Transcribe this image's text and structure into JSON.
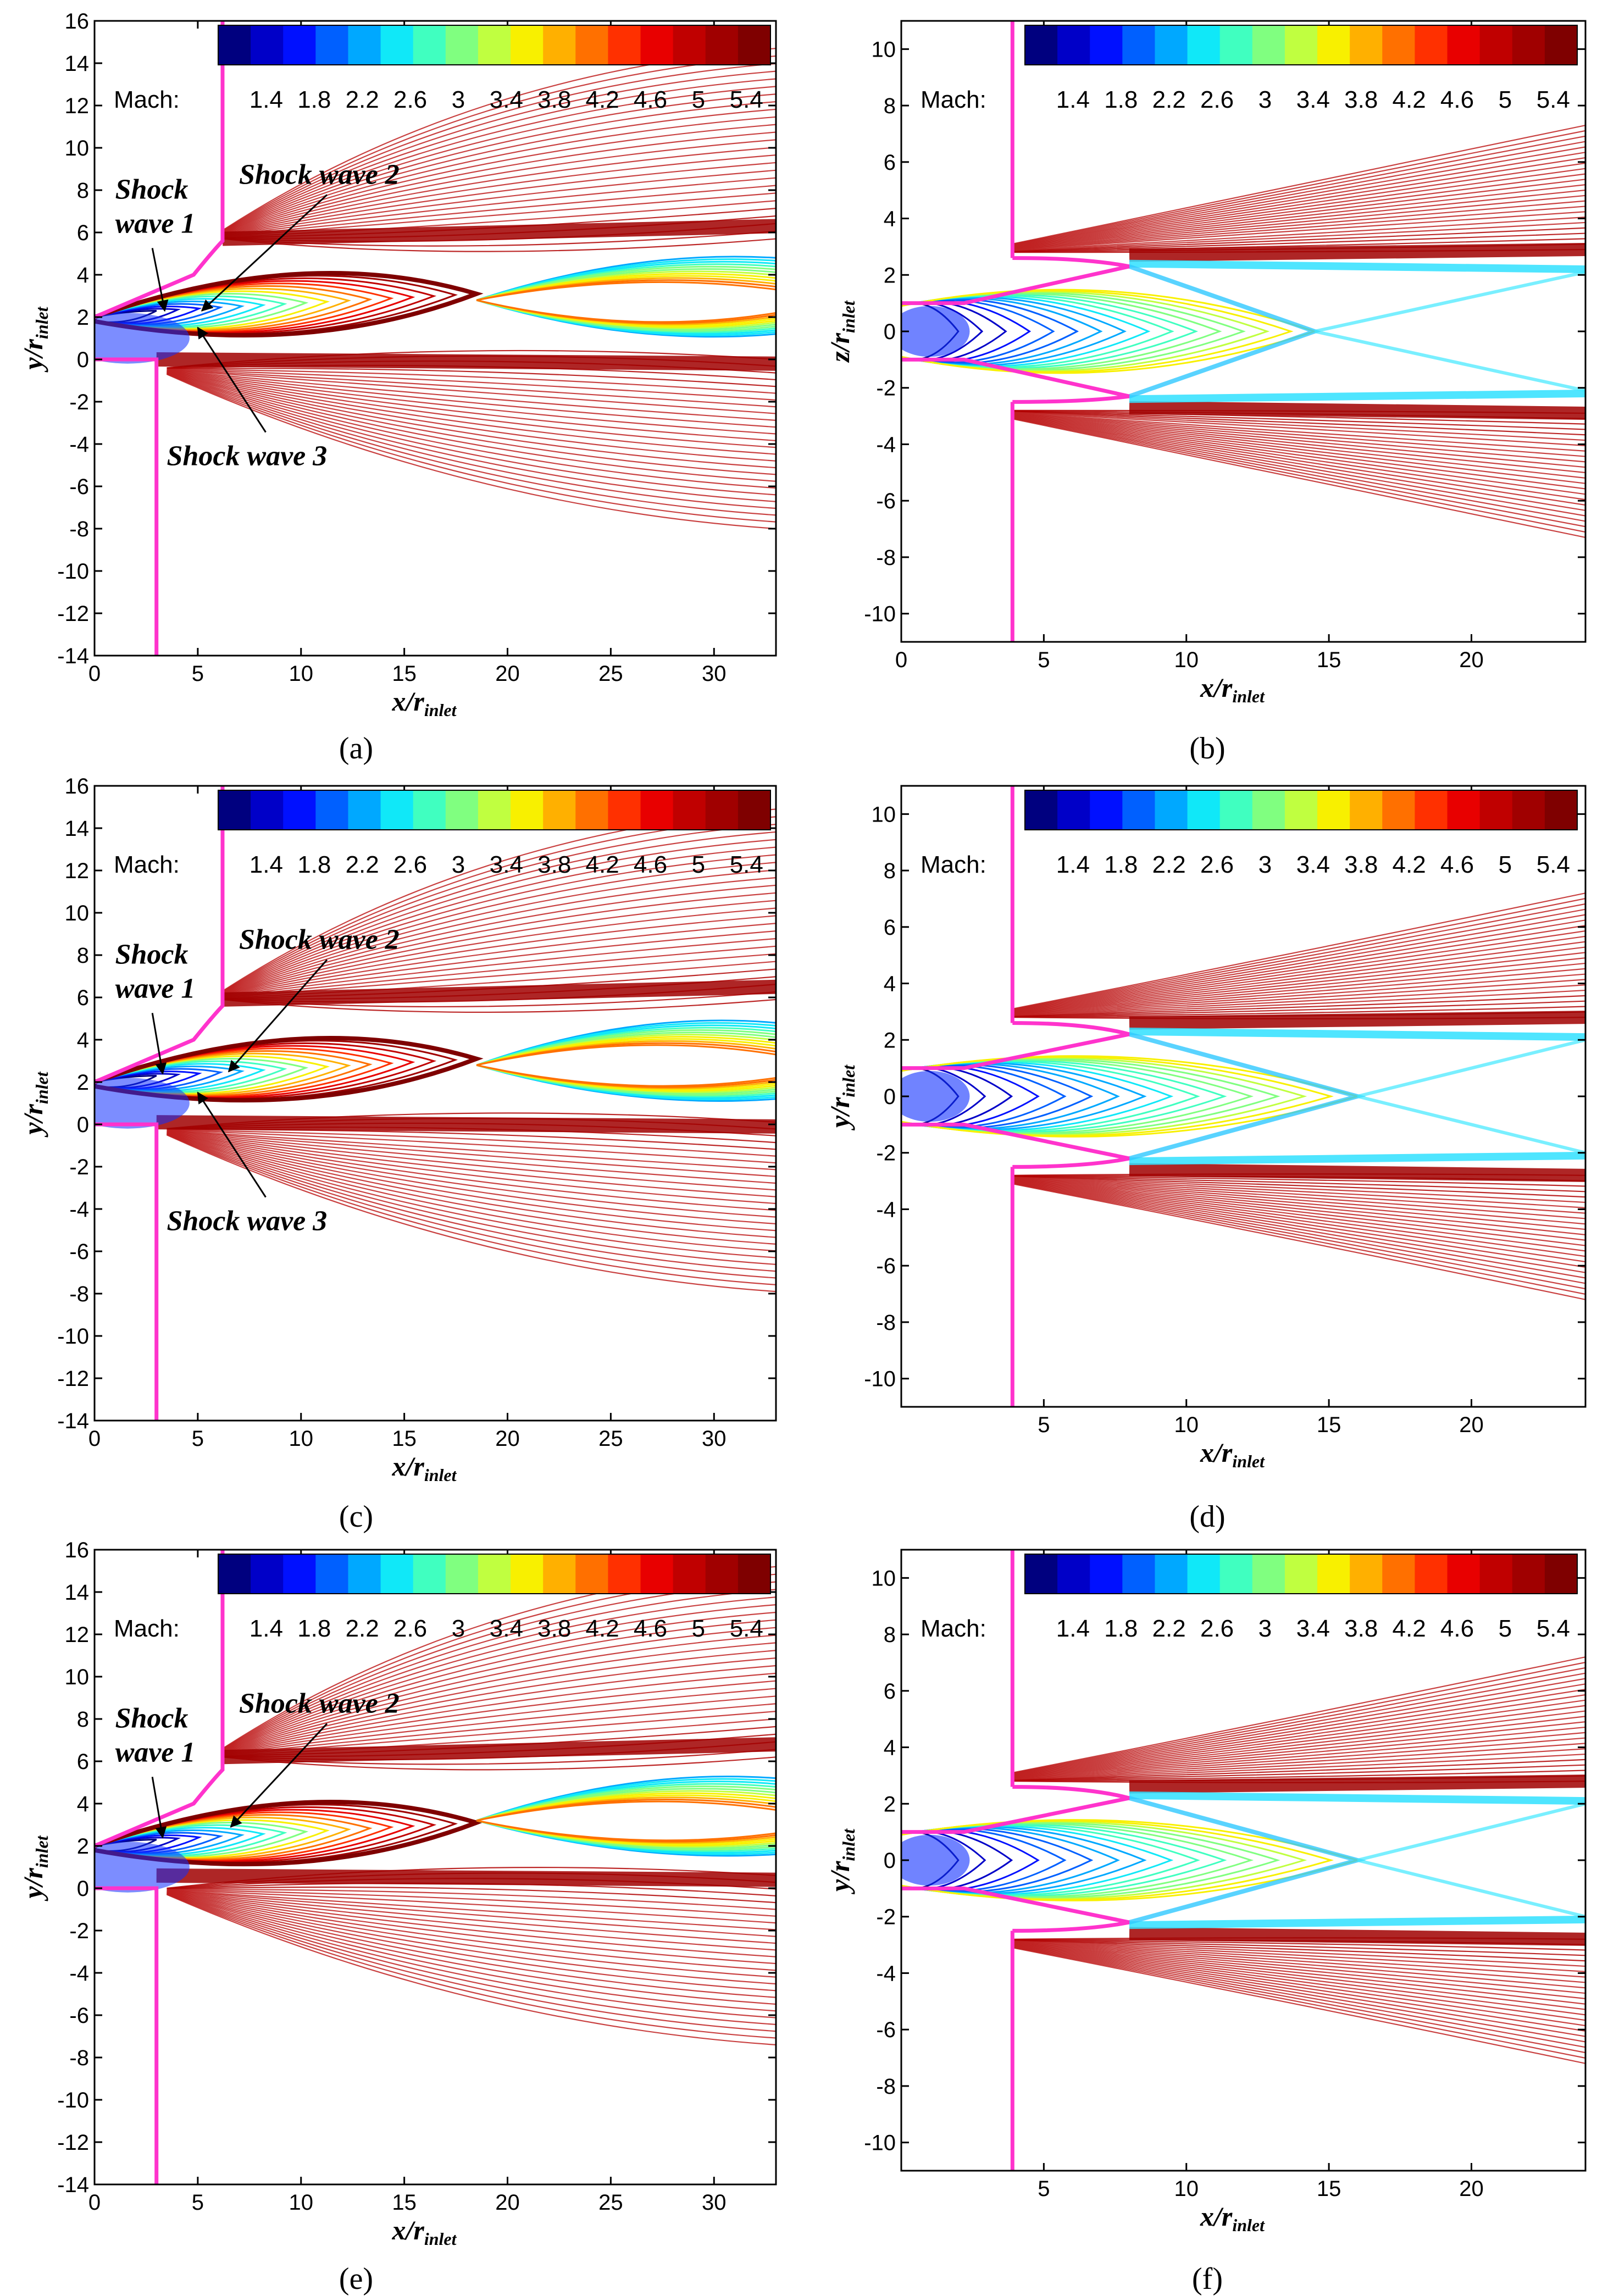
{
  "chart_data": [
    {
      "type": "contour",
      "panel": "a",
      "colorbar_label": "Mach:",
      "colorbar_ticks": [
        "1.4",
        "1.8",
        "2.2",
        "2.6",
        "3",
        "3.4",
        "3.8",
        "4.2",
        "4.6",
        "5",
        "5.4"
      ],
      "colorbar_range": [
        1.0,
        5.6
      ],
      "xlabel": "x/r",
      "xlabel_sub": "inlet",
      "ylabel": "y/r",
      "ylabel_sub": "inlet",
      "xlim": [
        0,
        33
      ],
      "ylim": [
        -14,
        16
      ],
      "xticks": [
        0,
        5,
        10,
        15,
        20,
        25,
        30
      ],
      "yticks": [
        -14,
        -12,
        -10,
        -8,
        -6,
        -4,
        -2,
        0,
        2,
        4,
        6,
        8,
        10,
        12,
        14,
        16
      ],
      "annotations": [
        {
          "lines": [
            "Shock",
            "wave 1"
          ],
          "text_at": [
            1.0,
            7.6
          ],
          "arrow_to": [
            3.4,
            2.3
          ]
        },
        {
          "lines": [
            "Shock wave 2"
          ],
          "text_at": [
            7.0,
            8.3
          ],
          "arrow_to": [
            5.2,
            2.3
          ]
        },
        {
          "lines": [
            "Shock wave 3"
          ],
          "text_at": [
            3.5,
            -5.0
          ],
          "arrow_to": [
            5.0,
            1.5
          ]
        }
      ],
      "geometry": {
        "nozzle_x": 3.0,
        "nozzle_top_y": 2.0,
        "nozzle_bottom_y": 0.0,
        "wall_bottom_y": -14.0,
        "plate_x": 6.2,
        "plate_y": 5.6,
        "plate_top_y": 16.0,
        "lower_lip_y": -0.4
      },
      "jet": {
        "core_end_x": 18.5,
        "core_top_y": 5.2,
        "core_bottom_y": 0.2,
        "upper_shear_y": 5.7,
        "lower_shear_y": 0.0,
        "second_cell_x": 25.0,
        "second_cell_center_y": 2.8
      }
    },
    {
      "type": "contour",
      "panel": "b",
      "colorbar_label": "Mach:",
      "colorbar_ticks": [
        "1.4",
        "1.8",
        "2.2",
        "2.6",
        "3",
        "3.4",
        "3.8",
        "4.2",
        "4.6",
        "5",
        "5.4"
      ],
      "colorbar_range": [
        1.0,
        5.6
      ],
      "xlabel": "x/r",
      "xlabel_sub": "inlet",
      "ylabel": "z/r",
      "ylabel_sub": "inlet",
      "xlim": [
        0,
        24
      ],
      "ylim": [
        -11,
        11
      ],
      "xticks": [
        0,
        5,
        10,
        15,
        20
      ],
      "yticks": [
        -10,
        -8,
        -6,
        -4,
        -2,
        0,
        2,
        4,
        6,
        8,
        10
      ],
      "annotations": [],
      "geometry": {
        "nozzle_half_height": 1.0,
        "expansion_x": 8.0,
        "expansion_half_height": 2.3,
        "plate_x": 3.9,
        "plate_y_top": 2.6,
        "plate_y_bottom": -2.5
      },
      "jet": {
        "core_end_x": 14.5,
        "half_width": 2.8
      }
    },
    {
      "type": "contour",
      "panel": "c",
      "colorbar_label": "Mach:",
      "colorbar_ticks": [
        "1.4",
        "1.8",
        "2.2",
        "2.6",
        "3",
        "3.4",
        "3.8",
        "4.2",
        "4.6",
        "5",
        "5.4"
      ],
      "colorbar_range": [
        1.0,
        5.6
      ],
      "xlabel": "x/r",
      "xlabel_sub": "inlet",
      "ylabel": "y/r",
      "ylabel_sub": "inlet",
      "xlim": [
        0,
        33
      ],
      "ylim": [
        -14,
        16
      ],
      "xticks": [
        0,
        5,
        10,
        15,
        20,
        25,
        30
      ],
      "yticks": [
        -14,
        -12,
        -10,
        -8,
        -6,
        -4,
        -2,
        0,
        2,
        4,
        6,
        8,
        10,
        12,
        14,
        16
      ],
      "annotations": [
        {
          "lines": [
            "Shock",
            "wave 1"
          ],
          "text_at": [
            1.0,
            7.6
          ],
          "arrow_to": [
            3.3,
            2.4
          ]
        },
        {
          "lines": [
            "Shock wave 2"
          ],
          "text_at": [
            7.0,
            8.3
          ],
          "arrow_to": [
            6.5,
            2.5
          ]
        },
        {
          "lines": [
            "Shock wave 3"
          ],
          "text_at": [
            3.5,
            -5.0
          ],
          "arrow_to": [
            5.0,
            1.5
          ]
        }
      ],
      "geometry": {
        "nozzle_x": 3.0,
        "nozzle_top_y": 2.0,
        "nozzle_bottom_y": 0.0,
        "wall_bottom_y": -14.0,
        "plate_x": 6.2,
        "plate_y": 5.6,
        "plate_top_y": 16.0,
        "lower_lip_y": -0.2
      },
      "jet": {
        "core_end_x": 18.5,
        "core_top_y": 5.2,
        "core_bottom_y": 0.2,
        "upper_shear_y": 5.9,
        "lower_shear_y": 0.1,
        "second_cell_x": 25.0,
        "second_cell_center_y": 2.8
      }
    },
    {
      "type": "contour",
      "panel": "d",
      "colorbar_label": "Mach:",
      "colorbar_ticks": [
        "1.4",
        "1.8",
        "2.2",
        "2.6",
        "3",
        "3.4",
        "3.8",
        "4.2",
        "4.6",
        "5",
        "5.4"
      ],
      "colorbar_range": [
        1.0,
        5.6
      ],
      "xlabel": "x/r",
      "xlabel_sub": "inlet",
      "ylabel": "y/r",
      "ylabel_sub": "inlet",
      "xlim": [
        0,
        24
      ],
      "ylim": [
        -11,
        11
      ],
      "xticks": [
        5,
        10,
        15,
        20
      ],
      "yticks": [
        -10,
        -8,
        -6,
        -4,
        -2,
        0,
        2,
        4,
        6,
        8,
        10
      ],
      "annotations": [],
      "geometry": {
        "nozzle_half_height": 1.0,
        "expansion_x": 8.0,
        "expansion_half_height": 2.2,
        "plate_x": 3.9,
        "plate_y_top": 2.6,
        "plate_y_bottom": -2.5
      },
      "jet": {
        "core_end_x": 16.0,
        "half_width": 2.5
      }
    },
    {
      "type": "contour",
      "panel": "e",
      "colorbar_label": "Mach:",
      "colorbar_ticks": [
        "1.4",
        "1.8",
        "2.2",
        "2.6",
        "3",
        "3.4",
        "3.8",
        "4.2",
        "4.6",
        "5",
        "5.4"
      ],
      "colorbar_range": [
        1.0,
        5.6
      ],
      "xlabel": "x/r",
      "xlabel_sub": "inlet",
      "ylabel": "y/r",
      "ylabel_sub": "inlet",
      "xlim": [
        0,
        33
      ],
      "ylim": [
        -14,
        16
      ],
      "xticks": [
        0,
        5,
        10,
        15,
        20,
        25,
        30
      ],
      "yticks": [
        -14,
        -12,
        -10,
        -8,
        -6,
        -4,
        -2,
        0,
        2,
        4,
        6,
        8,
        10,
        12,
        14,
        16
      ],
      "annotations": [
        {
          "lines": [
            "Shock",
            "wave 1"
          ],
          "text_at": [
            1.0,
            7.6
          ],
          "arrow_to": [
            3.3,
            2.4
          ]
        },
        {
          "lines": [
            "Shock wave 2"
          ],
          "text_at": [
            7.0,
            8.3
          ],
          "arrow_to": [
            6.6,
            2.9
          ]
        }
      ],
      "geometry": {
        "nozzle_x": 3.0,
        "nozzle_top_y": 2.0,
        "nozzle_bottom_y": 0.0,
        "wall_bottom_y": -14.0,
        "plate_x": 6.2,
        "plate_y": 5.6,
        "plate_top_y": 16.0,
        "lower_lip_y": 0.0
      },
      "jet": {
        "core_end_x": 18.5,
        "core_top_y": 5.2,
        "core_bottom_y": 0.2,
        "upper_shear_y": 6.2,
        "lower_shear_y": 0.6,
        "second_cell_x": 25.0,
        "second_cell_center_y": 3.2
      }
    },
    {
      "type": "contour",
      "panel": "f",
      "colorbar_label": "Mach:",
      "colorbar_ticks": [
        "1.4",
        "1.8",
        "2.2",
        "2.6",
        "3",
        "3.4",
        "3.8",
        "4.2",
        "4.6",
        "5",
        "5.4"
      ],
      "colorbar_range": [
        1.0,
        5.6
      ],
      "xlabel": "x/r",
      "xlabel_sub": "inlet",
      "ylabel": "y/r",
      "ylabel_sub": "inlet",
      "xlim": [
        0,
        24
      ],
      "ylim": [
        -11,
        11
      ],
      "xticks": [
        5,
        10,
        15,
        20
      ],
      "yticks": [
        -10,
        -8,
        -6,
        -4,
        -2,
        0,
        2,
        4,
        6,
        8,
        10
      ],
      "annotations": [],
      "geometry": {
        "nozzle_half_height": 1.0,
        "expansion_x": 8.0,
        "expansion_half_height": 2.2,
        "plate_x": 3.9,
        "plate_y_top": 2.6,
        "plate_y_bottom": -2.5
      },
      "jet": {
        "core_end_x": 16.0,
        "half_width": 2.4
      }
    }
  ],
  "captions": [
    "(a)",
    "(b)",
    "(c)",
    "(d)",
    "(e)",
    "(f)"
  ],
  "colormap": [
    "#00007f",
    "#0000c8",
    "#0010ff",
    "#0060ff",
    "#00a8ff",
    "#10e8f8",
    "#40ffc0",
    "#80ff80",
    "#c0ff40",
    "#f8f000",
    "#ffb000",
    "#ff7000",
    "#ff3000",
    "#e80000",
    "#c00000",
    "#a00000",
    "#7f0000"
  ],
  "wall_color": "#ff33cc"
}
